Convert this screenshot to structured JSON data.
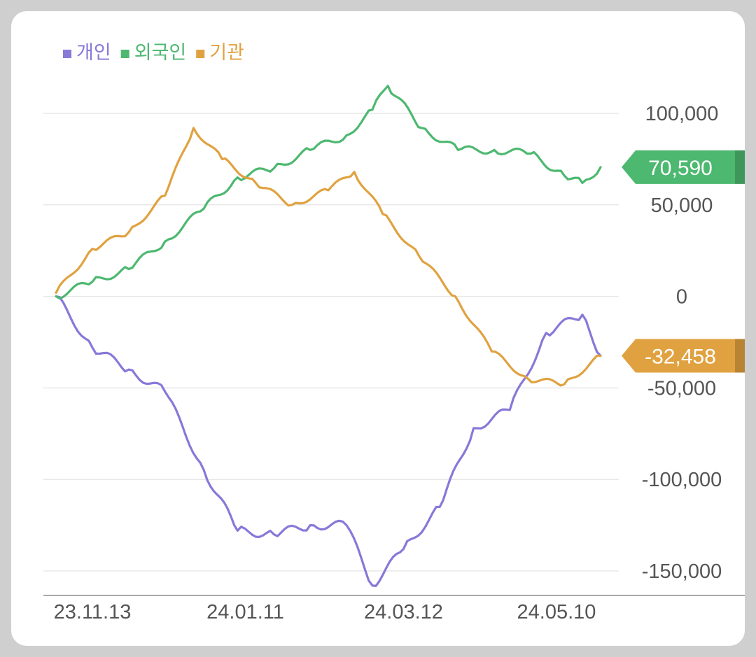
{
  "chart_data": {
    "type": "line",
    "title": "",
    "xlabel": "",
    "ylabel": "",
    "ylim": [
      -165000,
      125000
    ],
    "y_ticks": [
      100000,
      50000,
      0,
      -50000,
      -100000,
      -150000
    ],
    "y_tick_labels": [
      "100,000",
      "50,000",
      "0",
      "-50,000",
      "-100,000",
      "-150,000"
    ],
    "x_ticks": [
      {
        "date": "2023-11-13",
        "label": "23.11.13"
      },
      {
        "date": "2024-01-11",
        "label": "24.01.11"
      },
      {
        "date": "2024-03-12",
        "label": "24.03.12"
      },
      {
        "date": "2024-05-10",
        "label": "24.05.10"
      }
    ],
    "grid": true,
    "legend_position": "top-left",
    "end_badges": [
      {
        "series": "외국인",
        "value": 70590,
        "label": "70,590",
        "color": "#4db870"
      },
      {
        "series": "기관",
        "value": -32458,
        "label": "-32,458",
        "color": "#e0a240"
      }
    ],
    "series": [
      {
        "name": "개인",
        "color": "#8878d8",
        "points": [
          [
            "2023-10-30",
            0
          ],
          [
            "2023-11-13",
            -28000
          ],
          [
            "2023-11-27",
            -40000
          ],
          [
            "2023-12-11",
            -52000
          ],
          [
            "2023-12-26",
            -95000
          ],
          [
            "2024-01-08",
            -128000
          ],
          [
            "2024-01-22",
            -130000
          ],
          [
            "2024-02-05",
            -125000
          ],
          [
            "2024-02-19",
            -125000
          ],
          [
            "2024-02-29",
            -158000
          ],
          [
            "2024-03-12",
            -138000
          ],
          [
            "2024-03-26",
            -115000
          ],
          [
            "2024-04-08",
            -72000
          ],
          [
            "2024-04-22",
            -62000
          ],
          [
            "2024-05-06",
            -20000
          ],
          [
            "2024-05-20",
            -10000
          ],
          [
            "2024-05-27",
            -32458
          ]
        ]
      },
      {
        "name": "외국인",
        "color": "#4db870",
        "points": [
          [
            "2023-10-30",
            0
          ],
          [
            "2023-11-13",
            8000
          ],
          [
            "2023-11-27",
            15000
          ],
          [
            "2023-12-11",
            30000
          ],
          [
            "2023-12-26",
            48000
          ],
          [
            "2024-01-08",
            65000
          ],
          [
            "2024-01-22",
            70000
          ],
          [
            "2024-02-05",
            80000
          ],
          [
            "2024-02-19",
            88000
          ],
          [
            "2024-02-29",
            102000
          ],
          [
            "2024-03-06",
            115000
          ],
          [
            "2024-03-19",
            92000
          ],
          [
            "2024-04-02",
            80000
          ],
          [
            "2024-04-16",
            80000
          ],
          [
            "2024-04-30",
            78000
          ],
          [
            "2024-05-13",
            66000
          ],
          [
            "2024-05-20",
            62000
          ],
          [
            "2024-05-27",
            70590
          ]
        ]
      },
      {
        "name": "기관",
        "color": "#e0a240",
        "points": [
          [
            "2023-10-30",
            2000
          ],
          [
            "2023-11-13",
            26000
          ],
          [
            "2023-11-27",
            35000
          ],
          [
            "2023-12-11",
            55000
          ],
          [
            "2023-12-22",
            92000
          ],
          [
            "2024-01-02",
            75000
          ],
          [
            "2024-01-15",
            62000
          ],
          [
            "2024-01-29",
            50000
          ],
          [
            "2024-02-12",
            58000
          ],
          [
            "2024-02-22",
            68000
          ],
          [
            "2024-03-04",
            45000
          ],
          [
            "2024-03-18",
            22000
          ],
          [
            "2024-04-01",
            0
          ],
          [
            "2024-04-15",
            -30000
          ],
          [
            "2024-04-29",
            -45000
          ],
          [
            "2024-05-13",
            -48000
          ],
          [
            "2024-05-27",
            -32458
          ]
        ]
      }
    ]
  }
}
